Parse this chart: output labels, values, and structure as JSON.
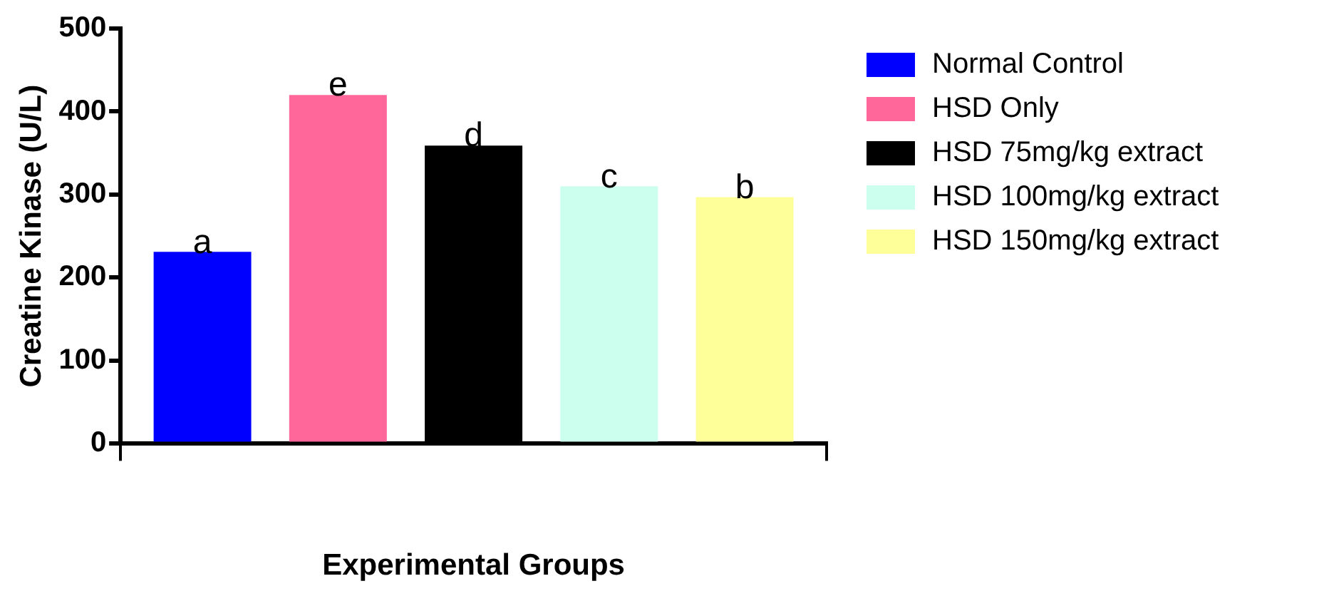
{
  "chart_data": {
    "type": "bar",
    "xlabel": "Experimental Groups",
    "ylabel": "Creatine Kinase (U/L)",
    "categories": [
      null
    ],
    "series": [
      {
        "name": "Normal Control",
        "color": "#0000ff",
        "values": [
          231
        ],
        "value_labels": [
          "a"
        ]
      },
      {
        "name": "HSD Only",
        "color": "#ff6699",
        "values": [
          420
        ],
        "value_labels": [
          "e"
        ]
      },
      {
        "name": "HSD 75mg/kg extract",
        "color": "#000000",
        "values": [
          359
        ],
        "value_labels": [
          "d"
        ]
      },
      {
        "name": "HSD 100mg/kg extract",
        "color": "#ccffee",
        "values": [
          310
        ],
        "value_labels": [
          "c"
        ]
      },
      {
        "name": "HSD 150mg/kg extract",
        "color": "#ffff99",
        "values": [
          297
        ],
        "value_labels": [
          "b"
        ]
      }
    ],
    "ylim": [
      0,
      500
    ],
    "yticks": [
      0,
      100,
      200,
      300,
      400,
      500
    ],
    "grid": false,
    "legend": "right"
  }
}
